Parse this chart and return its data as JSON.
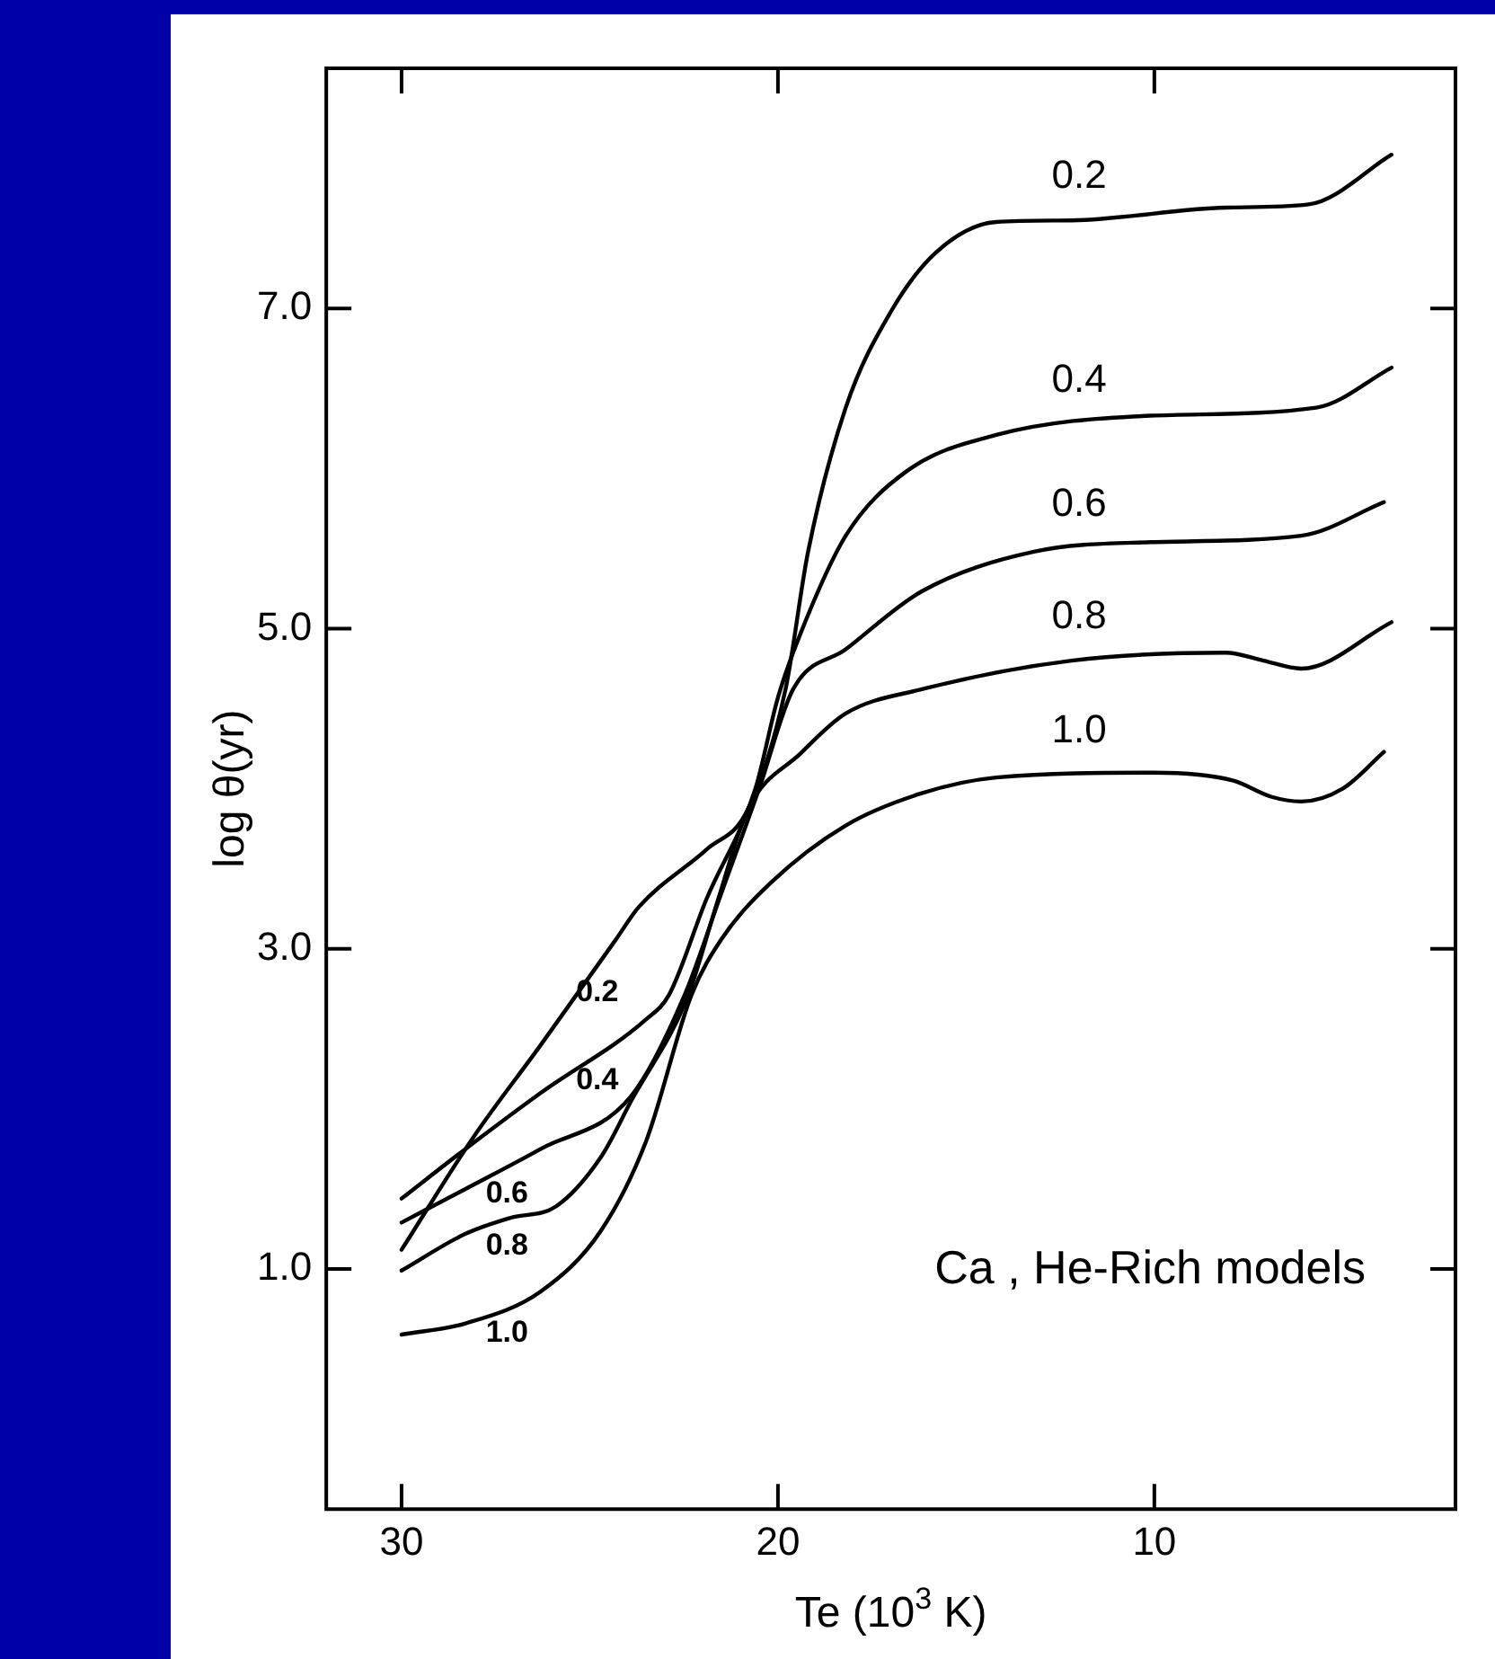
{
  "chart_data": {
    "type": "line",
    "xlabel": "Te (10$^{3}$ K)",
    "ylabel": "log θ(yr)",
    "xlim": [
      32,
      2
    ],
    "xticks": [
      30,
      20,
      10
    ],
    "ylim": [
      -0.5,
      8.5
    ],
    "yticks": [
      {
        "value": 1,
        "label": "1.0"
      },
      {
        "value": 3,
        "label": "3.0"
      },
      {
        "value": 5,
        "label": "5.0"
      },
      {
        "value": 7,
        "label": "7.0"
      }
    ],
    "grid": false,
    "legend": false,
    "marker": "none",
    "line_style": "solid",
    "series": [
      {
        "name": "0.2",
        "color": "#000000",
        "x": [
          3.7,
          5.9,
          8.1,
          12.2,
          14.2,
          15.8,
          17.0,
          18.2,
          19.2,
          19.8,
          20.8,
          21.9,
          23.7,
          24.3,
          26.3,
          28.1,
          30
        ],
        "values": [
          7.96,
          7.65,
          7.63,
          7.55,
          7.54,
          7.35,
          6.98,
          6.38,
          5.48,
          4.62,
          3.87,
          3.62,
          3.26,
          3.06,
          2.4,
          1.82,
          1.12
        ]
      },
      {
        "name": "0.4",
        "color": "#000000",
        "x": [
          3.7,
          5.7,
          10.1,
          14.2,
          16.6,
          18.2,
          19.4,
          20.0,
          20.6,
          21.9,
          22.9,
          23.5,
          26.3,
          28.3,
          30
        ],
        "values": [
          6.63,
          6.38,
          6.33,
          6.21,
          5.98,
          5.58,
          4.97,
          4.57,
          4.0,
          3.31,
          2.71,
          2.56,
          2.1,
          1.75,
          1.44
        ]
      },
      {
        "name": "0.6",
        "color": "#000000",
        "x": [
          3.9,
          6.1,
          10.1,
          13.2,
          16.2,
          18.2,
          19.6,
          20.5,
          21.5,
          22.5,
          23.9,
          26.3,
          28.3,
          30
        ],
        "values": [
          5.79,
          5.58,
          5.54,
          5.48,
          5.23,
          4.87,
          4.62,
          4.0,
          3.35,
          2.7,
          2.08,
          1.75,
          1.5,
          1.29
        ]
      },
      {
        "name": "0.8",
        "color": "#000000",
        "x": [
          3.7,
          6.1,
          7.1,
          8.1,
          12.2,
          16.2,
          18.2,
          19.4,
          20.8,
          21.6,
          22.4,
          23.9,
          24.7,
          25.9,
          27.1,
          28.3,
          30
        ],
        "values": [
          5.04,
          4.75,
          4.8,
          4.85,
          4.8,
          4.62,
          4.47,
          4.22,
          3.87,
          3.3,
          2.7,
          2.05,
          1.7,
          1.39,
          1.32,
          1.22,
          0.99
        ]
      },
      {
        "name": "1.0",
        "color": "#000000",
        "x": [
          3.9,
          5.0,
          6.1,
          6.9,
          7.9,
          10,
          14.2,
          16.2,
          18.2,
          20.2,
          21.5,
          22.3,
          23.5,
          24.7,
          26.3,
          28.3,
          30
        ],
        "values": [
          4.23,
          4.0,
          3.92,
          3.95,
          4.05,
          4.1,
          4.07,
          3.97,
          3.77,
          3.41,
          3.06,
          2.71,
          1.8,
          1.24,
          0.86,
          0.66,
          0.59
        ]
      }
    ],
    "annotations": [
      "Ca , He-Rich models"
    ]
  }
}
